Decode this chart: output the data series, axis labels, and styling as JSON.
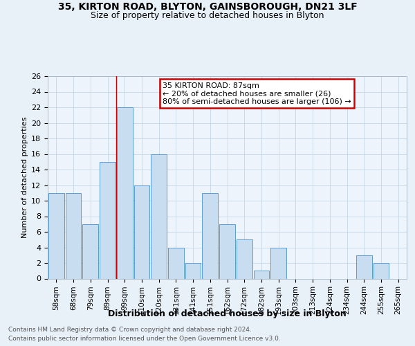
{
  "title1": "35, KIRTON ROAD, BLYTON, GAINSBOROUGH, DN21 3LF",
  "title2": "Size of property relative to detached houses in Blyton",
  "xlabel": "Distribution of detached houses by size in Blyton",
  "ylabel": "Number of detached properties",
  "bins": [
    "58sqm",
    "68sqm",
    "79sqm",
    "89sqm",
    "99sqm",
    "110sqm",
    "120sqm",
    "131sqm",
    "141sqm",
    "151sqm",
    "162sqm",
    "172sqm",
    "182sqm",
    "193sqm",
    "203sqm",
    "213sqm",
    "224sqm",
    "234sqm",
    "244sqm",
    "255sqm",
    "265sqm"
  ],
  "values": [
    11,
    11,
    7,
    15,
    22,
    12,
    16,
    4,
    2,
    11,
    7,
    5,
    1,
    4,
    0,
    0,
    0,
    0,
    3,
    2,
    0
  ],
  "bar_color": "#c9ddf0",
  "bar_edge_color": "#5b9bd5",
  "vline_x_idx": 3.5,
  "vline_color": "#cc0000",
  "annotation_line1": "35 KIRTON ROAD: 87sqm",
  "annotation_line2": "← 20% of detached houses are smaller (26)",
  "annotation_line3": "80% of semi-detached houses are larger (106) →",
  "annotation_box_color": "#cc0000",
  "ylim": [
    0,
    26
  ],
  "yticks": [
    0,
    2,
    4,
    6,
    8,
    10,
    12,
    14,
    16,
    18,
    20,
    22,
    24,
    26
  ],
  "footer1": "Contains HM Land Registry data © Crown copyright and database right 2024.",
  "footer2": "Contains public sector information licensed under the Open Government Licence v3.0.",
  "background_color": "#e8f0f8",
  "plot_bg_color": "#edf4fb",
  "grid_color": "#c5d5e5",
  "title1_fontsize": 10,
  "title2_fontsize": 9,
  "ylabel_fontsize": 8,
  "xlabel_fontsize": 9,
  "tick_fontsize": 7.5,
  "ytick_fontsize": 8,
  "footer_fontsize": 6.5,
  "annot_fontsize": 8
}
